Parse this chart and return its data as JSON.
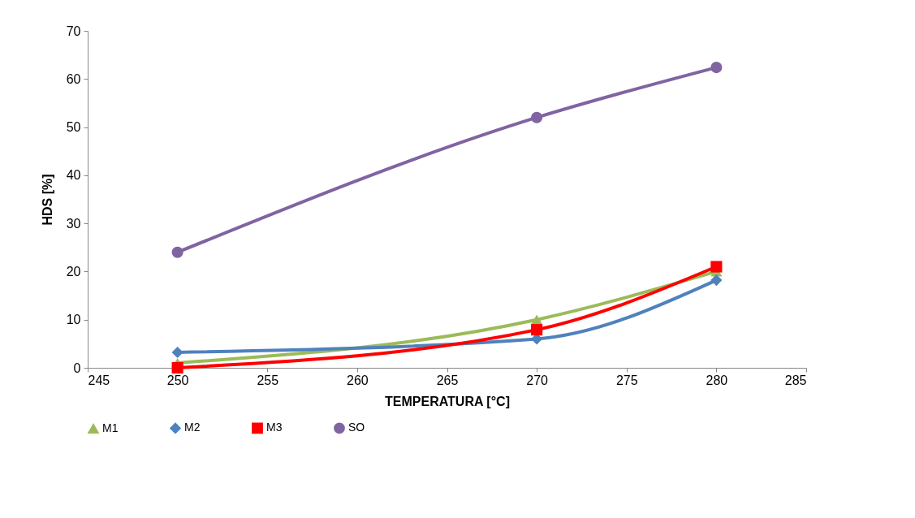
{
  "chart_data": {
    "type": "line",
    "xlabel": "TEMPERATURA [°C]",
    "ylabel": "HDS [%]",
    "x": [
      250,
      270,
      280
    ],
    "xlim": [
      245,
      285
    ],
    "xticks": [
      245,
      250,
      255,
      260,
      265,
      270,
      275,
      280,
      285
    ],
    "ylim": [
      0,
      70
    ],
    "yticks": [
      0,
      10,
      20,
      30,
      40,
      50,
      60,
      70
    ],
    "grid": false,
    "legend": "bottom",
    "line_style": "solid",
    "series": [
      {
        "name": "M1",
        "color": "#9bbb59",
        "marker": "triangle",
        "values": [
          1,
          10,
          20
        ]
      },
      {
        "name": "M2",
        "color": "#4f81bd",
        "marker": "diamond",
        "values": [
          3.2,
          6,
          18.2
        ]
      },
      {
        "name": "M3",
        "color": "#ff0000",
        "marker": "square",
        "values": [
          0,
          7.9,
          21
        ]
      },
      {
        "name": "SO",
        "color": "#8064a2",
        "marker": "circle",
        "values": [
          24,
          52,
          62.4
        ]
      }
    ]
  }
}
